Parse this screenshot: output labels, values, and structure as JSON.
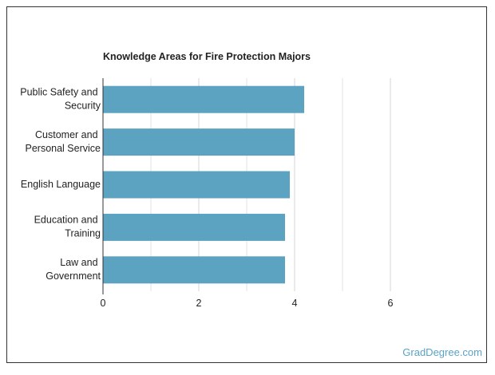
{
  "chart_data": {
    "type": "bar",
    "orientation": "horizontal",
    "title": "Knowledge Areas for Fire Protection Majors",
    "categories": [
      "Public Safety and Security",
      "Customer and Personal Service",
      "English Language",
      "Education and Training",
      "Law and Government"
    ],
    "values": [
      4.2,
      4.0,
      3.9,
      3.8,
      3.8
    ],
    "color": "#5ba3c1",
    "xlim": [
      0,
      6
    ],
    "xticks": [
      0,
      2,
      4,
      6
    ],
    "minor_grid": [
      1,
      3,
      5
    ],
    "grid": true
  },
  "watermark": "GradDegree.com"
}
